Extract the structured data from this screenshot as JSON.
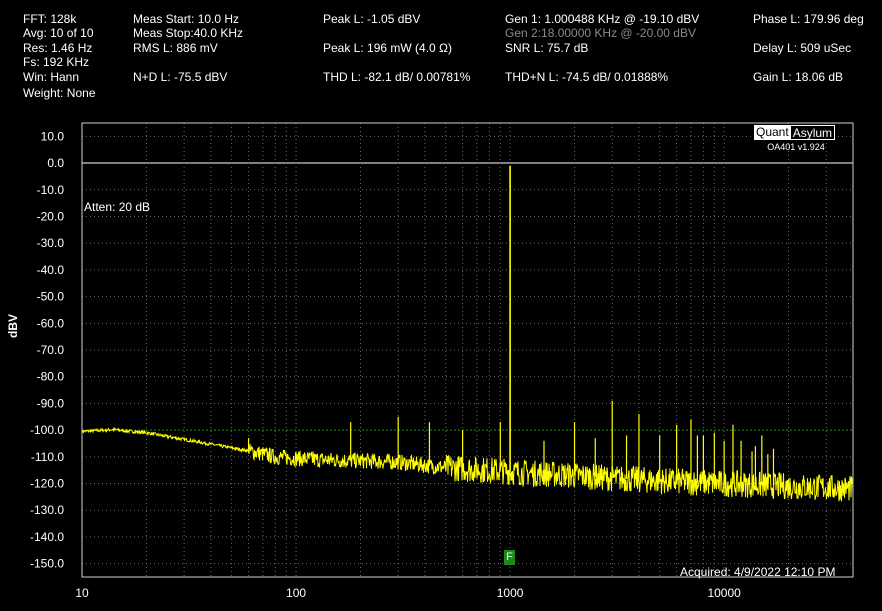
{
  "readouts": {
    "fft": "FFT:  128k",
    "avg": "Avg:  10 of 10",
    "res": "Res:  1.46 Hz",
    "fs": "Fs:  192 KHz",
    "win": "Win:  Hann",
    "weight": "Weight:  None",
    "meas_start": "Meas Start:  10.0 Hz",
    "meas_stop": "Meas Stop:40.0 KHz",
    "rms": "RMS L:  886 mV",
    "nd": "N+D L:  -75.5 dBV",
    "peak_l_dbv": "Peak L:  -1.05 dBV",
    "peak_l_mw": "Peak L:  196 mW (4.0 Ω)",
    "thd": "THD L:  -82.1 dB/ 0.00781%",
    "gen1": "Gen 1:  1.000488 KHz @ -19.10  dBV",
    "gen2": "Gen 2:18.00000 KHz @ -20.00  dBV",
    "snr": "SNR L:  75.7 dB",
    "thdn": "THD+N L:  -74.5 dB/ 0.01888%",
    "phase": "Phase L:  179.96 deg",
    "delay": "Delay L:  509 uSec",
    "gain": "Gain L:  18.06 dB"
  },
  "logo": {
    "quant": "Quant",
    "asylum": "Asylum",
    "version": "OA401 v1.924"
  },
  "atten": "Atten: 20 dB",
  "acquired": "Acquired: 4/9/2022  12:10 PM",
  "fundamental_marker": "F",
  "chart_data": {
    "type": "line",
    "title": "",
    "xlabel": "",
    "ylabel": "dBV",
    "x_scale": "log",
    "xlim": [
      10,
      40000
    ],
    "ylim": [
      -155,
      15
    ],
    "grid": true,
    "y_ticks": [
      10,
      0,
      -10,
      -20,
      -30,
      -40,
      -50,
      -60,
      -70,
      -80,
      -90,
      -100,
      -110,
      -120,
      -130,
      -140,
      -150
    ],
    "y_tick_labels": [
      "10.0",
      "0.0",
      "-10.0",
      "-20.0",
      "-30.0",
      "-40.0",
      "-50.0",
      "-60.0",
      "-70.0",
      "-80.0",
      "-90.0",
      "-100.0",
      "-110.0",
      "-120.0",
      "-130.0",
      "-140.0",
      "-150.0"
    ],
    "x_ticks": [
      10,
      100,
      1000,
      10000
    ],
    "x_tick_labels": [
      "10",
      "100",
      "1000",
      "10000"
    ],
    "reference_lines": [
      0,
      -100
    ],
    "series": [
      {
        "color": "#ffff00",
        "floor": [
          [
            10,
            -100.5
          ],
          [
            14,
            -99.8
          ],
          [
            20,
            -101
          ],
          [
            30,
            -103.5
          ],
          [
            45,
            -106
          ],
          [
            62,
            -108
          ],
          [
            80,
            -110
          ],
          [
            120,
            -111
          ],
          [
            200,
            -111.5
          ],
          [
            300,
            -112
          ],
          [
            500,
            -114
          ],
          [
            800,
            -115
          ],
          [
            1200,
            -116
          ],
          [
            2000,
            -117
          ],
          [
            3000,
            -118
          ],
          [
            5000,
            -119
          ],
          [
            10000,
            -120
          ],
          [
            20000,
            -121
          ],
          [
            40000,
            -122
          ]
        ],
        "peaks": [
          [
            60,
            -103
          ],
          [
            120,
            -108
          ],
          [
            180,
            -97
          ],
          [
            300,
            -95
          ],
          [
            420,
            -97
          ],
          [
            600,
            -100
          ],
          [
            900,
            -97
          ],
          [
            1000,
            -1
          ],
          [
            1440,
            -104
          ],
          [
            2000,
            -97
          ],
          [
            2500,
            -103
          ],
          [
            3000,
            -89
          ],
          [
            3500,
            -102
          ],
          [
            4000,
            -94
          ],
          [
            5000,
            -102
          ],
          [
            6000,
            -98
          ],
          [
            7000,
            -96
          ],
          [
            7500,
            -102
          ],
          [
            8000,
            -102
          ],
          [
            9000,
            -101
          ],
          [
            10000,
            -104
          ],
          [
            11000,
            -98
          ],
          [
            12000,
            -104
          ],
          [
            13500,
            -108
          ],
          [
            14000,
            -106
          ],
          [
            15000,
            -102
          ],
          [
            16000,
            -109
          ],
          [
            17000,
            -107
          ]
        ]
      }
    ]
  }
}
